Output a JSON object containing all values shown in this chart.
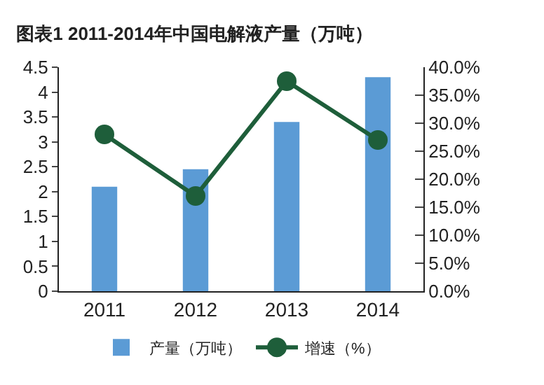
{
  "chart_data": {
    "type": "bar",
    "title": "图表1 2011-2014年中国电解液产量（万吨）",
    "categories": [
      "2011",
      "2012",
      "2013",
      "2014"
    ],
    "series": [
      {
        "name": "产量（万吨）",
        "color": "#5b9bd5",
        "values": [
          2.1,
          2.45,
          3.4,
          4.3
        ]
      },
      {
        "name": "增速（%）",
        "type": "line",
        "axis": "y2",
        "color": "#1e5e3a",
        "marker": "circle",
        "values": [
          28,
          17,
          37.5,
          27
        ]
      }
    ],
    "ylim": [
      0,
      4.5
    ],
    "yticks": [
      0,
      0.5,
      1,
      1.5,
      2,
      2.5,
      3,
      3.5,
      4,
      4.5
    ],
    "y2lim": [
      0,
      40
    ],
    "y2ticks": [
      {
        "value": 0,
        "label": "0.0%"
      },
      {
        "value": 5,
        "label": "5.0%"
      },
      {
        "value": 10,
        "label": "10.0%"
      },
      {
        "value": 15,
        "label": "15.0%"
      },
      {
        "value": 20,
        "label": "20.0%"
      },
      {
        "value": 25,
        "label": "25.0%"
      },
      {
        "value": 30,
        "label": "30.0%"
      },
      {
        "value": 35,
        "label": "35.0%"
      },
      {
        "value": 40,
        "label": "40.0%"
      }
    ],
    "grid": false,
    "legend": "bottom"
  }
}
